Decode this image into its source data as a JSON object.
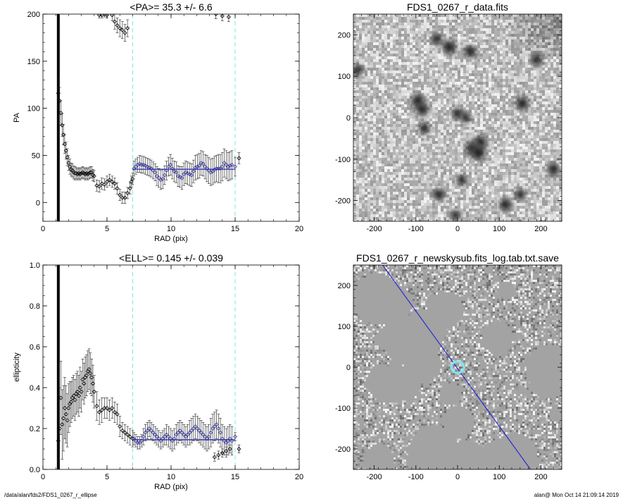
{
  "chart_data": [
    {
      "type": "scatter",
      "title": "<PA>=  35.3 +/-   6.6",
      "xlabel": "RAD (pix)",
      "ylabel": "PA",
      "xlim": [
        0,
        20
      ],
      "ylim": [
        -20,
        200
      ],
      "xticks": [
        "0",
        "5",
        "10",
        "15",
        "20"
      ],
      "yticks": [
        "0",
        "50",
        "100",
        "150",
        "200"
      ],
      "vlines": [
        7,
        15
      ],
      "thick_vline": 1.2,
      "mean_line": {
        "value": 35.3,
        "x_range": [
          7,
          15
        ]
      },
      "colors": {
        "black_points": "#000000",
        "blue_points": "#3a3aa0",
        "vlines": "#86e0e0",
        "mean_line": "#2a2aa8"
      },
      "series": [
        {
          "color": "black",
          "x": [
            1.2,
            1.3,
            1.4,
            1.5,
            1.6,
            1.7,
            1.8,
            1.9,
            2.0,
            2.1,
            2.2,
            2.3,
            2.4,
            2.5,
            2.6,
            2.7,
            2.8,
            2.9,
            3.0,
            3.1,
            3.2,
            3.3,
            3.4,
            3.5,
            3.6,
            3.7,
            3.8,
            3.9,
            4.0,
            4.2,
            4.4,
            4.6,
            4.8,
            5.0,
            5.2,
            5.4,
            5.6,
            5.8,
            6.0,
            6.2,
            6.4,
            6.6,
            6.8,
            6.9,
            7.0
          ],
          "y": [
            116,
            108,
            95,
            82,
            72,
            62,
            55,
            48,
            42,
            38,
            35,
            34,
            32,
            31,
            31,
            30,
            31,
            30,
            31,
            32,
            31,
            30,
            31,
            30,
            31,
            32,
            32,
            29,
            28,
            18,
            17,
            20,
            19,
            22,
            24,
            22,
            20,
            15,
            8,
            5,
            5,
            10,
            15,
            22,
            25
          ],
          "err": [
            15,
            14,
            13,
            12,
            11,
            10,
            9,
            9,
            8,
            8,
            7,
            7,
            7,
            7,
            6,
            6,
            6,
            6,
            6,
            6,
            6,
            6,
            6,
            6,
            6,
            6,
            6,
            6,
            6,
            6,
            6,
            6,
            6,
            6,
            6,
            6,
            6,
            6,
            6,
            6,
            6,
            6,
            6,
            6,
            6
          ]
        },
        {
          "color": "black-top",
          "x": [
            4.4,
            4.6,
            4.8,
            5.0,
            5.4,
            5.6,
            5.8,
            6.0,
            6.2,
            6.4,
            6.6
          ],
          "y": [
            199,
            199,
            200,
            199,
            199,
            192,
            188,
            185,
            183,
            180,
            185
          ],
          "err": [
            3,
            3,
            3,
            3,
            6,
            8,
            8,
            9,
            9,
            9,
            9
          ]
        },
        {
          "color": "blue",
          "x": [
            7.1,
            7.25,
            7.4,
            7.55,
            7.7,
            7.85,
            8.0,
            8.15,
            8.3,
            8.45,
            8.6,
            8.75,
            8.9,
            9.05,
            9.2,
            9.35,
            9.5,
            9.65,
            9.8,
            9.95,
            10.1,
            10.25,
            10.4,
            10.55,
            10.7,
            10.85,
            11.0,
            11.15,
            11.3,
            11.45,
            11.6,
            11.75,
            11.9,
            12.05,
            12.2,
            12.35,
            12.5,
            12.65,
            12.8,
            12.95,
            13.1,
            13.25,
            13.4,
            13.55,
            13.7,
            13.85,
            14.0,
            14.15,
            14.3,
            14.45,
            14.6,
            14.75,
            15.0
          ],
          "y": [
            36,
            38,
            40,
            41,
            40,
            40,
            39,
            38,
            37,
            36,
            34,
            32,
            28,
            26,
            24,
            25,
            29,
            34,
            38,
            40,
            36,
            33,
            32,
            28,
            27,
            26,
            30,
            32,
            31,
            30,
            29,
            33,
            37,
            38,
            39,
            42,
            41,
            38,
            36,
            34,
            32,
            33,
            35,
            36,
            36,
            36,
            38,
            42,
            40,
            38,
            39,
            40,
            38
          ],
          "err": [
            8,
            8,
            8,
            9,
            9,
            9,
            9,
            9,
            9,
            9,
            9,
            9,
            10,
            10,
            10,
            10,
            10,
            10,
            10,
            11,
            11,
            11,
            11,
            11,
            11,
            12,
            12,
            12,
            12,
            12,
            12,
            12,
            13,
            13,
            13,
            13,
            13,
            13,
            14,
            14,
            14,
            14,
            14,
            14,
            15,
            15,
            15,
            15,
            15,
            15,
            15,
            15,
            10
          ]
        },
        {
          "color": "black-outer",
          "x": [
            13.5,
            14.0,
            14.5,
            15.3
          ],
          "y": [
            200,
            198,
            197,
            47
          ],
          "err": [
            5,
            5,
            5,
            6
          ]
        }
      ]
    },
    {
      "type": "scatter",
      "title": "<ELL>= 0.145 +/-  0.039",
      "xlabel": "RAD (pix)",
      "ylabel": "ellipticity",
      "xlim": [
        0,
        20
      ],
      "ylim": [
        0,
        1
      ],
      "xticks": [
        "0",
        "5",
        "10",
        "15",
        "20"
      ],
      "yticks": [
        "0.0",
        "0.2",
        "0.4",
        "0.6",
        "0.8",
        "1.0"
      ],
      "vlines": [
        7,
        15
      ],
      "thick_vline": 1.2,
      "mean_line": {
        "value": 0.145,
        "x_range": [
          7,
          15
        ]
      },
      "series": [
        {
          "color": "black",
          "x": [
            1.2,
            1.3,
            1.4,
            1.5,
            1.6,
            1.7,
            1.8,
            1.9,
            2.0,
            2.1,
            2.2,
            2.3,
            2.4,
            2.5,
            2.6,
            2.7,
            2.8,
            2.9,
            3.0,
            3.1,
            3.2,
            3.3,
            3.4,
            3.5,
            3.6,
            3.7,
            3.8,
            3.9,
            4.0,
            4.2,
            4.4,
            4.6,
            4.8,
            5.0,
            5.2,
            5.4,
            5.6,
            5.8,
            6.0,
            6.2,
            6.4,
            6.6,
            6.8,
            7.0
          ],
          "y": [
            0.14,
            0.2,
            0.35,
            0.22,
            0.25,
            0.3,
            0.27,
            0.24,
            0.3,
            0.32,
            0.33,
            0.35,
            0.36,
            0.34,
            0.37,
            0.38,
            0.36,
            0.4,
            0.38,
            0.44,
            0.42,
            0.45,
            0.46,
            0.48,
            0.49,
            0.47,
            0.45,
            0.42,
            0.38,
            0.31,
            0.28,
            0.29,
            0.3,
            0.3,
            0.29,
            0.3,
            0.28,
            0.27,
            0.21,
            0.19,
            0.18,
            0.17,
            0.16,
            0.15
          ],
          "err": [
            0.2,
            0.2,
            0.18,
            0.17,
            0.16,
            0.15,
            0.14,
            0.13,
            0.12,
            0.11,
            0.1,
            0.1,
            0.1,
            0.1,
            0.1,
            0.1,
            0.1,
            0.1,
            0.1,
            0.1,
            0.1,
            0.1,
            0.1,
            0.1,
            0.1,
            0.1,
            0.09,
            0.09,
            0.08,
            0.07,
            0.06,
            0.06,
            0.05,
            0.05,
            0.05,
            0.05,
            0.05,
            0.05,
            0.05,
            0.04,
            0.04,
            0.04,
            0.04,
            0.04
          ]
        },
        {
          "color": "blue",
          "x": [
            7.1,
            7.25,
            7.4,
            7.55,
            7.7,
            7.85,
            8.0,
            8.15,
            8.3,
            8.45,
            8.6,
            8.75,
            8.9,
            9.05,
            9.2,
            9.35,
            9.5,
            9.65,
            9.8,
            9.95,
            10.1,
            10.25,
            10.4,
            10.55,
            10.7,
            10.85,
            11.0,
            11.15,
            11.3,
            11.45,
            11.6,
            11.75,
            11.9,
            12.05,
            12.2,
            12.35,
            12.5,
            12.65,
            12.8,
            12.95,
            13.1,
            13.25,
            13.4,
            13.55,
            13.7,
            13.85,
            14.0,
            14.15,
            14.3,
            14.45,
            14.6,
            14.75,
            15.0
          ],
          "y": [
            0.15,
            0.14,
            0.13,
            0.13,
            0.14,
            0.16,
            0.18,
            0.19,
            0.2,
            0.19,
            0.18,
            0.17,
            0.16,
            0.15,
            0.14,
            0.15,
            0.16,
            0.17,
            0.16,
            0.15,
            0.14,
            0.15,
            0.17,
            0.18,
            0.19,
            0.18,
            0.17,
            0.16,
            0.17,
            0.18,
            0.19,
            0.2,
            0.21,
            0.2,
            0.19,
            0.18,
            0.17,
            0.16,
            0.15,
            0.16,
            0.18,
            0.2,
            0.21,
            0.22,
            0.2,
            0.18,
            0.15,
            0.14,
            0.13,
            0.14,
            0.15,
            0.14,
            0.16
          ],
          "err": [
            0.03,
            0.03,
            0.03,
            0.03,
            0.03,
            0.04,
            0.04,
            0.04,
            0.04,
            0.04,
            0.04,
            0.04,
            0.04,
            0.04,
            0.04,
            0.04,
            0.04,
            0.05,
            0.05,
            0.05,
            0.05,
            0.05,
            0.05,
            0.05,
            0.05,
            0.05,
            0.05,
            0.05,
            0.05,
            0.06,
            0.06,
            0.06,
            0.06,
            0.06,
            0.06,
            0.06,
            0.06,
            0.06,
            0.06,
            0.06,
            0.07,
            0.07,
            0.07,
            0.07,
            0.07,
            0.07,
            0.07,
            0.07,
            0.07,
            0.07,
            0.07,
            0.07,
            0.02
          ]
        },
        {
          "color": "black-outer",
          "x": [
            13.4,
            13.7,
            14.0,
            14.3,
            14.6,
            15.3
          ],
          "y": [
            0.06,
            0.07,
            0.08,
            0.09,
            0.1,
            0.1
          ],
          "err": [
            0.02,
            0.02,
            0.02,
            0.02,
            0.02,
            0.02
          ]
        }
      ]
    },
    {
      "type": "heatmap",
      "title": "FDS1_0267_r_data.fits",
      "xlim": [
        -250,
        250
      ],
      "ylim": [
        -250,
        250
      ],
      "xticks": [
        "-200",
        "-100",
        "0",
        "100",
        "200"
      ],
      "yticks": [
        "-200",
        "-100",
        "0",
        "100",
        "200"
      ],
      "sources": [
        {
          "x": -20,
          "y": 170,
          "flux": 1.0
        },
        {
          "x": 30,
          "y": 160,
          "flux": 0.8
        },
        {
          "x": -50,
          "y": 190,
          "flux": 0.6
        },
        {
          "x": -95,
          "y": 40,
          "flux": 1.0
        },
        {
          "x": -85,
          "y": 20,
          "flux": 0.8
        },
        {
          "x": 155,
          "y": 35,
          "flux": 0.9
        },
        {
          "x": 190,
          "y": 140,
          "flux": 0.7
        },
        {
          "x": 0,
          "y": 10,
          "flux": 0.6
        },
        {
          "x": 20,
          "y": 0,
          "flux": 0.5
        },
        {
          "x": 55,
          "y": -60,
          "flux": 1.0
        },
        {
          "x": 35,
          "y": -75,
          "flux": 1.0
        },
        {
          "x": 50,
          "y": -85,
          "flux": 1.1
        },
        {
          "x": -80,
          "y": -25,
          "flux": 0.6
        },
        {
          "x": 10,
          "y": -150,
          "flux": 0.5
        },
        {
          "x": -45,
          "y": -185,
          "flux": 0.7
        },
        {
          "x": 115,
          "y": -210,
          "flux": 0.8
        },
        {
          "x": 150,
          "y": -185,
          "flux": 0.6
        },
        {
          "x": 230,
          "y": -125,
          "flux": 0.8
        },
        {
          "x": -240,
          "y": 115,
          "flux": 0.6
        },
        {
          "x": -5,
          "y": -235,
          "flux": 0.4
        }
      ]
    },
    {
      "type": "heatmap",
      "title": "FDS1_0267_r_newskysub.fits_log.tab.txt.save",
      "xlim": [
        -250,
        250
      ],
      "ylim": [
        -250,
        250
      ],
      "xticks": [
        "-200",
        "-100",
        "0",
        "100",
        "200"
      ],
      "yticks": [
        "-200",
        "-100",
        "0",
        "100",
        "200"
      ],
      "line": {
        "from": [
          -180,
          250
        ],
        "to": [
          175,
          -250
        ]
      },
      "ellipse": {
        "x": 0,
        "y": 0
      },
      "colors": {
        "line": "#2a2ad8",
        "ellipse": "#7fe6f0"
      }
    }
  ],
  "footer": {
    "left": "/data/alan/fds2/FDS1_0267_r_ellipse",
    "right": "alan@  Mon Oct 14 21:09:14 2019"
  }
}
